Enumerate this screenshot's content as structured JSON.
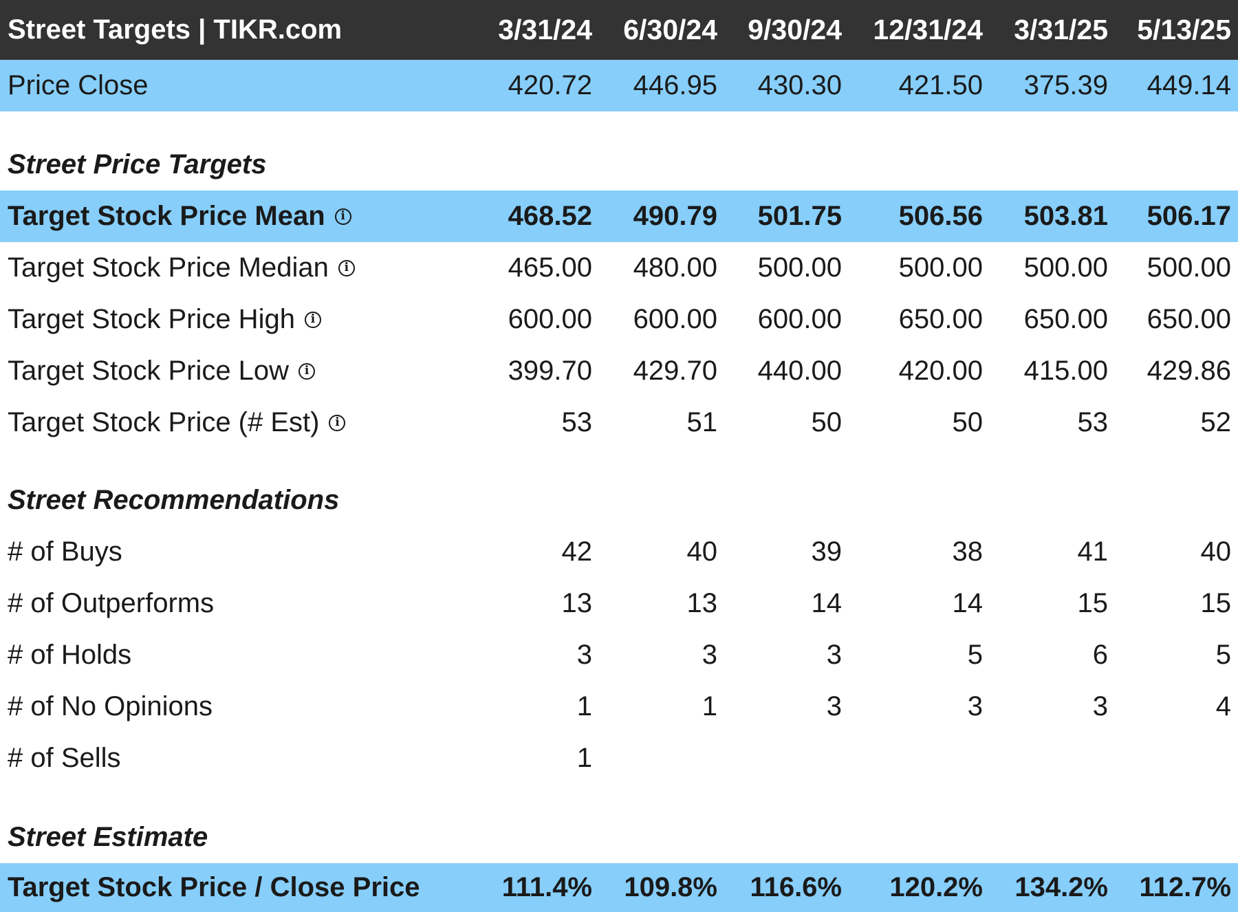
{
  "header": {
    "title": "Street Targets | TIKR.com",
    "dates": [
      "3/31/24",
      "6/30/24",
      "9/30/24",
      "12/31/24",
      "3/31/25",
      "5/13/25"
    ]
  },
  "price_close": {
    "label": "Price Close",
    "values": [
      "420.72",
      "446.95",
      "430.30",
      "421.50",
      "375.39",
      "449.14"
    ]
  },
  "sections": {
    "price_targets": "Street Price Targets",
    "recommendations": "Street Recommendations",
    "estimate": "Street Estimate"
  },
  "price_targets": [
    {
      "label": "Target Stock Price Mean",
      "info": true,
      "values": [
        "468.52",
        "490.79",
        "501.75",
        "506.56",
        "503.81",
        "506.17"
      ]
    },
    {
      "label": "Target Stock Price Median",
      "info": true,
      "values": [
        "465.00",
        "480.00",
        "500.00",
        "500.00",
        "500.00",
        "500.00"
      ]
    },
    {
      "label": "Target Stock Price High",
      "info": true,
      "values": [
        "600.00",
        "600.00",
        "600.00",
        "650.00",
        "650.00",
        "650.00"
      ]
    },
    {
      "label": "Target Stock Price Low",
      "info": true,
      "values": [
        "399.70",
        "429.70",
        "440.00",
        "420.00",
        "415.00",
        "429.86"
      ]
    },
    {
      "label": "Target Stock Price (# Est)",
      "info": true,
      "values": [
        "53",
        "51",
        "50",
        "50",
        "53",
        "52"
      ]
    }
  ],
  "recommendations": [
    {
      "label": "# of Buys",
      "values": [
        "42",
        "40",
        "39",
        "38",
        "41",
        "40"
      ]
    },
    {
      "label": "# of Outperforms",
      "values": [
        "13",
        "13",
        "14",
        "14",
        "15",
        "15"
      ]
    },
    {
      "label": "# of Holds",
      "values": [
        "3",
        "3",
        "3",
        "5",
        "6",
        "5"
      ]
    },
    {
      "label": "# of No Opinions",
      "values": [
        "1",
        "1",
        "3",
        "3",
        "3",
        "4"
      ]
    },
    {
      "label": "# of Sells",
      "values": [
        "1",
        "",
        "",
        "",
        "",
        ""
      ]
    }
  ],
  "estimate": [
    {
      "label": "Target Stock Price / Close Price",
      "values": [
        "111.4%",
        "109.8%",
        "116.6%",
        "120.2%",
        "134.2%",
        "112.7%"
      ]
    }
  ],
  "colors": {
    "header_bg": "#333333",
    "highlight_bg": "#87cefa",
    "text": "#1a1a1a"
  },
  "icons": {
    "info": "info-circle-icon"
  }
}
